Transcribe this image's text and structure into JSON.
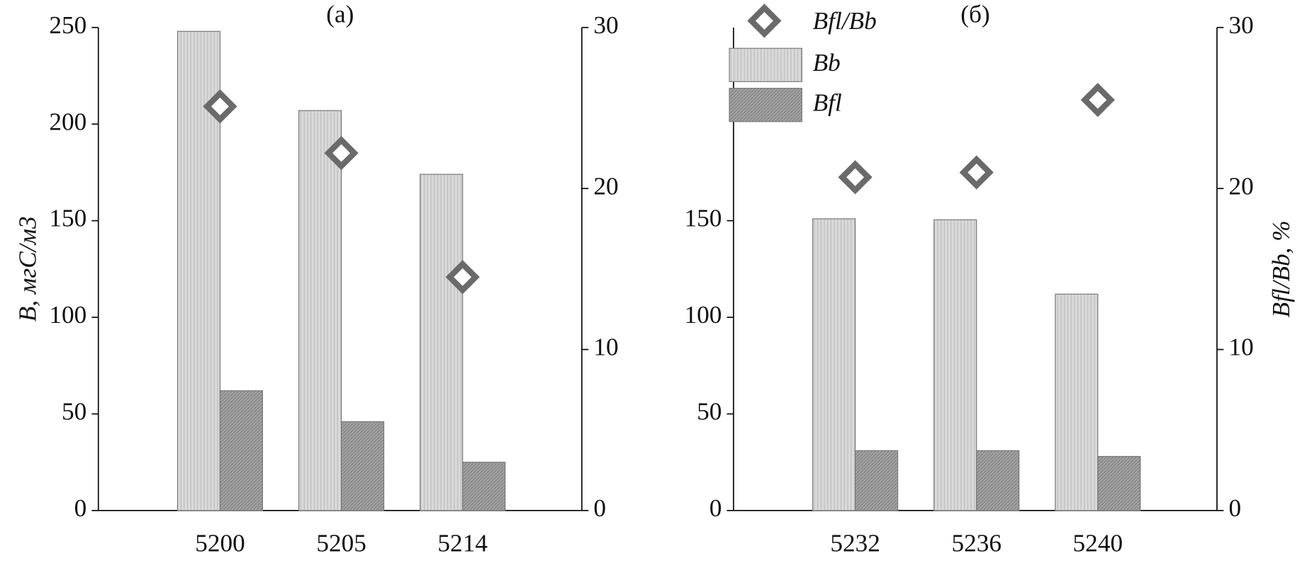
{
  "chart_data": [
    {
      "type": "bar",
      "title": "(а)",
      "ylabel": "B, мгС/м3",
      "categories": [
        "5200",
        "5205",
        "5214"
      ],
      "series": [
        {
          "name": "Bb",
          "color": "#d4d4d4",
          "values": [
            248,
            207,
            174
          ]
        },
        {
          "name": "Bfl",
          "color": "#9c9c9c",
          "values": [
            62,
            46,
            25
          ]
        },
        {
          "name": "Bfl/Bb",
          "type": "scatter",
          "axis": "y2",
          "color": "#6a6a6a",
          "values": [
            25.1,
            22.2,
            14.5
          ]
        }
      ],
      "ylim": [
        0,
        250
      ],
      "yticks": [
        0,
        50,
        100,
        150,
        200,
        250
      ],
      "y2lim": [
        0,
        30
      ],
      "y2ticks": [
        0,
        10,
        20,
        30
      ]
    },
    {
      "type": "bar",
      "title": "(б)",
      "y2label": "Bfl/Bb, %",
      "categories": [
        "5232",
        "5236",
        "5240"
      ],
      "series": [
        {
          "name": "Bb",
          "color": "#d4d4d4",
          "values": [
            151,
            150.5,
            112
          ]
        },
        {
          "name": "Bfl",
          "color": "#9c9c9c",
          "values": [
            31,
            31,
            28
          ]
        },
        {
          "name": "Bfl/Bb",
          "type": "scatter",
          "axis": "y2",
          "color": "#6a6a6a",
          "values": [
            20.7,
            21.0,
            25.5
          ]
        }
      ],
      "ylim": [
        0,
        250
      ],
      "yticks": [
        0,
        50,
        100,
        150
      ],
      "y2lim": [
        0,
        30
      ],
      "y2ticks": [
        0,
        10,
        20,
        30
      ],
      "legend": "upper left"
    }
  ]
}
